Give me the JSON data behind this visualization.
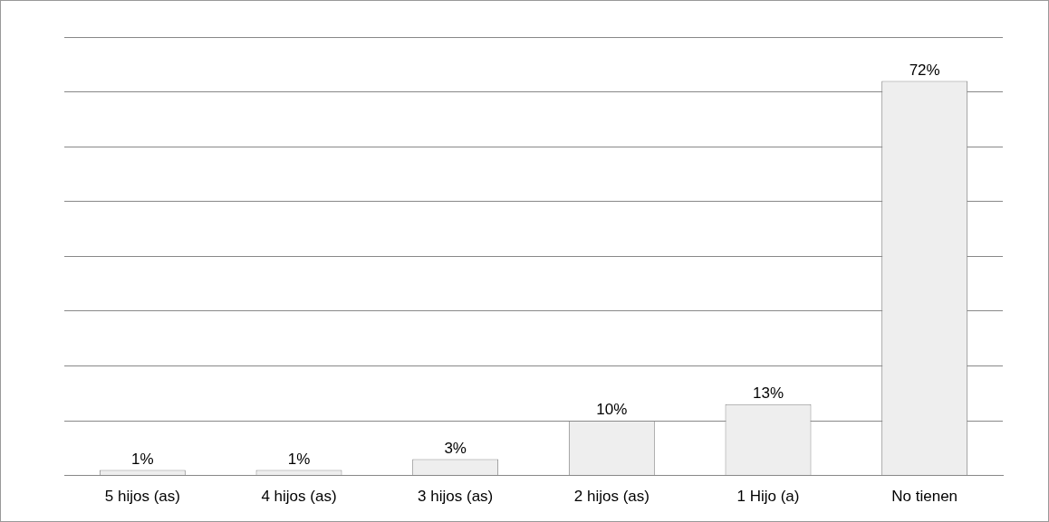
{
  "chart_data": {
    "type": "bar",
    "categories": [
      "5 hijos (as)",
      "4 hijos (as)",
      "3 hijos (as)",
      "2 hijos (as)",
      "1 Hijo (a)",
      "No tienen"
    ],
    "values": [
      1,
      1,
      3,
      10,
      13,
      72
    ],
    "value_labels": [
      "1%",
      "1%",
      "3%",
      "10%",
      "13%",
      "72%"
    ],
    "color": "#eeeeee",
    "ylim": [
      0,
      80
    ],
    "tick_labels": "x",
    "grid": "y",
    "legend": false
  }
}
